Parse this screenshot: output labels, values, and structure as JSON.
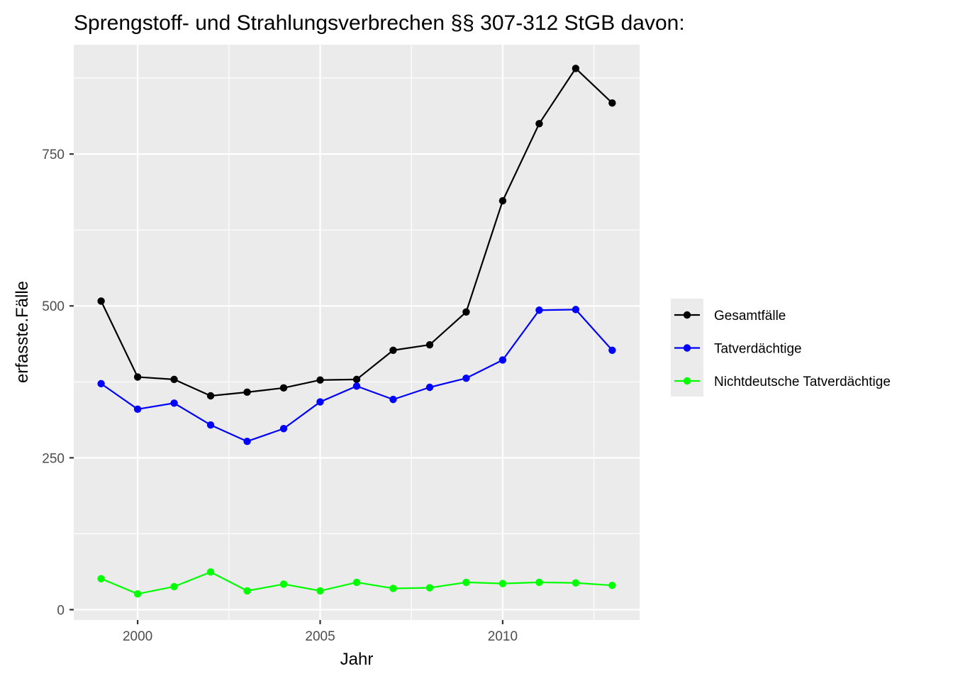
{
  "chart_data": {
    "type": "line",
    "title": "Sprengstoff- und Strahlungsverbrechen §§ 307-312 StGB davon:",
    "xlabel": "Jahr",
    "ylabel": "erfasste.Fälle",
    "x": [
      1999,
      2000,
      2001,
      2002,
      2003,
      2004,
      2005,
      2006,
      2007,
      2008,
      2009,
      2010,
      2011,
      2012,
      2013
    ],
    "xlim": [
      1998.25,
      2013.75
    ],
    "ylim": [
      -17,
      930
    ],
    "x_ticks": [
      2000,
      2005,
      2010
    ],
    "x_tick_labels": [
      "2000",
      "2005",
      "2010"
    ],
    "x_minor_ticks": [
      2002.5,
      2007.5,
      2012.5
    ],
    "y_ticks": [
      0,
      250,
      500,
      750
    ],
    "y_tick_labels": [
      "0",
      "250",
      "500",
      "750"
    ],
    "y_minor_ticks": [
      125,
      375,
      625,
      875
    ],
    "grid": true,
    "legend_position": "right",
    "series": [
      {
        "name": "Gesamtfälle",
        "color": "#000000",
        "values": [
          508,
          383,
          379,
          352,
          358,
          365,
          378,
          379,
          427,
          436,
          490,
          673,
          800,
          891,
          834
        ]
      },
      {
        "name": "Tatverdächtige",
        "color": "#0000ff",
        "values": [
          372,
          330,
          340,
          304,
          277,
          298,
          342,
          368,
          346,
          366,
          381,
          411,
          493,
          494,
          427
        ]
      },
      {
        "name": "Nichtdeutsche Tatverdächtige",
        "color": "#00ff00",
        "values": [
          51,
          26,
          38,
          62,
          31,
          42,
          31,
          45,
          35,
          36,
          45,
          43,
          45,
          44,
          40
        ]
      }
    ]
  }
}
